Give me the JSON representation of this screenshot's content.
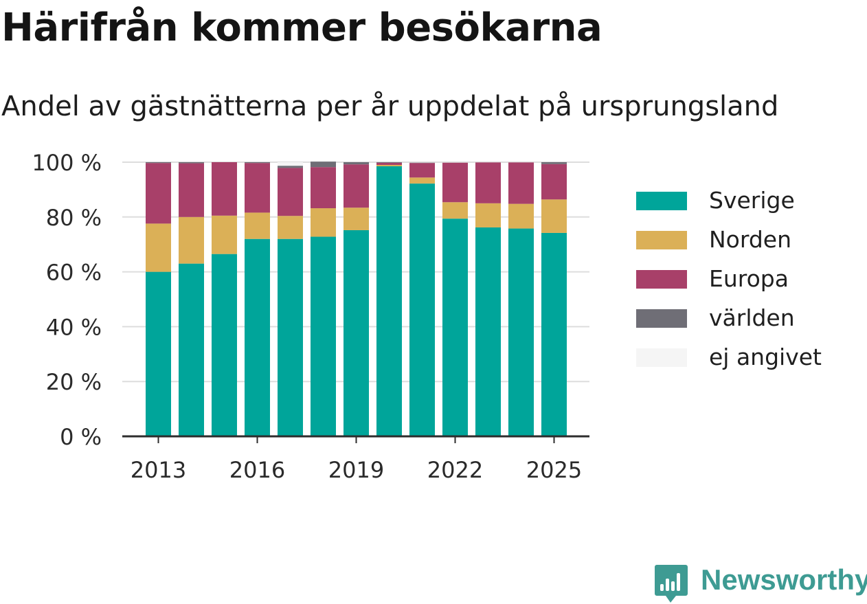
{
  "title": "Härifrån kommer besökarna",
  "subtitle": "Andel av gästnätterna per år uppdelat på ursprungsland",
  "brand": "Newsworthy",
  "brand_color": "#3e9b93",
  "chart_data": {
    "type": "bar",
    "stacked": true,
    "categories": [
      "2013",
      "2014",
      "2015",
      "2016",
      "2017",
      "2018",
      "2019",
      "2020",
      "2021",
      "2022",
      "2023",
      "2024",
      "2025"
    ],
    "x_tick_labels": [
      "2013",
      "2016",
      "2019",
      "2022",
      "2025"
    ],
    "y_tick_labels": [
      "0 %",
      "20 %",
      "40 %",
      "60 %",
      "80 %",
      "100 %"
    ],
    "ylim": [
      0,
      100
    ],
    "grid": true,
    "legend_position": "right",
    "series": [
      {
        "name": "Sverige",
        "color": "#00a59a",
        "values": [
          60,
          63,
          66.5,
          72,
          72,
          72.8,
          75.2,
          98.5,
          92.2,
          79.4,
          76.2,
          75.8,
          74.2
        ]
      },
      {
        "name": "Norden",
        "color": "#dbb057",
        "values": [
          17.6,
          17,
          14,
          9.6,
          8.4,
          10.4,
          8.2,
          0.5,
          2.2,
          6,
          8.8,
          9,
          12.2
        ]
      },
      {
        "name": "Europa",
        "color": "#a84069",
        "values": [
          22.1,
          19.6,
          19.5,
          18.1,
          17.5,
          15,
          15.8,
          0.8,
          5.3,
          14.4,
          14.9,
          15.1,
          12.9
        ]
      },
      {
        "name": "världen",
        "color": "#6f6e76",
        "values": [
          0.3,
          0.4,
          0,
          0.3,
          0.8,
          2,
          0.8,
          0.2,
          0.1,
          0,
          0,
          0,
          0.7
        ]
      },
      {
        "name": "ej angivet",
        "color": "#f5f5f5",
        "values": [
          0,
          0,
          0,
          0,
          1.3,
          0,
          0,
          0,
          0,
          0,
          0,
          0,
          0
        ]
      }
    ]
  }
}
